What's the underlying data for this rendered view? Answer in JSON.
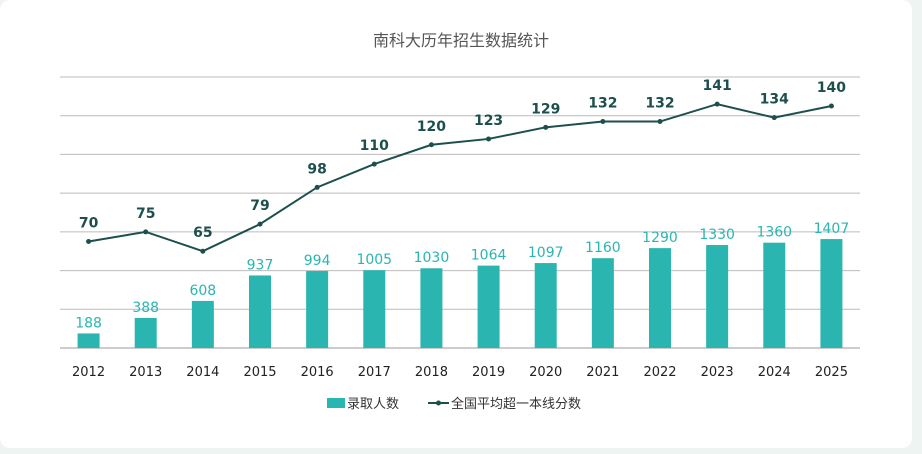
{
  "chart_data": {
    "type": "bar+line",
    "title": "南科大历年招生数据统计",
    "categories": [
      "2012",
      "2013",
      "2014",
      "2015",
      "2016",
      "2017",
      "2018",
      "2019",
      "2020",
      "2021",
      "2022",
      "2023",
      "2024",
      "2025"
    ],
    "series": [
      {
        "name": "录取人数",
        "type": "bar",
        "color": "#2bb5b0",
        "values": [
          188,
          388,
          608,
          937,
          994,
          1005,
          1030,
          1064,
          1097,
          1160,
          1290,
          1330,
          1360,
          1407
        ],
        "ylim": [
          0,
          3500
        ]
      },
      {
        "name": "全国平均超一本线分数",
        "type": "line",
        "color": "#1c4f4d",
        "values": [
          70,
          75,
          65,
          79,
          98,
          110,
          120,
          123,
          129,
          132,
          132,
          141,
          134,
          140
        ],
        "ylim": [
          15,
          155
        ]
      }
    ],
    "grid": true,
    "legend": "bottom"
  }
}
